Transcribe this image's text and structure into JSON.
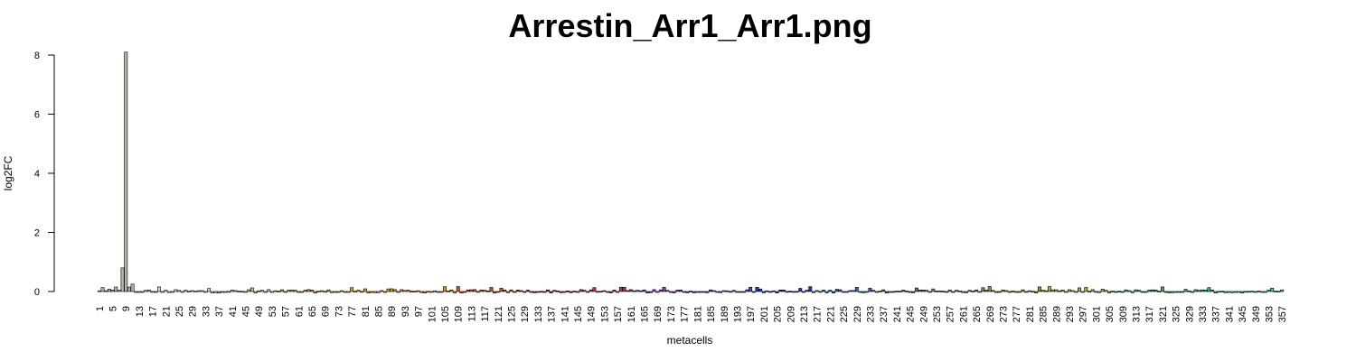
{
  "chart_data": {
    "type": "bar",
    "title": "Arrestin_Arr1_Arr1.png",
    "xlabel": "metacells",
    "ylabel": "log2FC",
    "ylim": [
      0,
      8
    ],
    "y_ticks": [
      0,
      2,
      4,
      6,
      8
    ],
    "n_bars": 357,
    "x_tick_labels": [
      "1",
      "5",
      "9",
      "13",
      "17",
      "21",
      "25",
      "29",
      "33",
      "37",
      "41",
      "45",
      "49",
      "53",
      "57",
      "61",
      "65",
      "69",
      "73",
      "77",
      "81",
      "85",
      "89",
      "93",
      "97",
      "101",
      "105",
      "109",
      "113",
      "117",
      "121",
      "125",
      "129",
      "133",
      "137",
      "141",
      "145",
      "149",
      "153",
      "157",
      "161",
      "165",
      "169",
      "173",
      "177",
      "181",
      "185",
      "189",
      "193",
      "197",
      "201",
      "205",
      "209",
      "213",
      "217",
      "221",
      "225",
      "229",
      "233",
      "237",
      "241",
      "245",
      "249",
      "253",
      "257",
      "261",
      "265",
      "269",
      "273",
      "277",
      "281",
      "285",
      "289",
      "293",
      "297",
      "301",
      "305",
      "309",
      "313",
      "317",
      "321",
      "325",
      "329",
      "333",
      "337",
      "341",
      "345",
      "349",
      "353",
      "357"
    ],
    "highlights": {
      "8": 0.8,
      "9": 8.1,
      "10": 0.15,
      "11": 0.25,
      "6": 0.15,
      "4": 0.08
    },
    "group_colors": [
      "#b8b4ad",
      "#d9d2bd",
      "#c2b98c",
      "#b89e4a",
      "#d4a21e",
      "#e08a17",
      "#d9541a",
      "#c81d2a",
      "#b0306e",
      "#8a3ab8",
      "#5d3fbf",
      "#2a35c4",
      "#2b5fbf",
      "#6a6a6a",
      "#8a7a55",
      "#9c8a2d",
      "#8cba3a",
      "#3fa84a",
      "#2fae8a",
      "#2ec4c4"
    ],
    "bar_colors_note": "colors assigned by metacell group"
  }
}
